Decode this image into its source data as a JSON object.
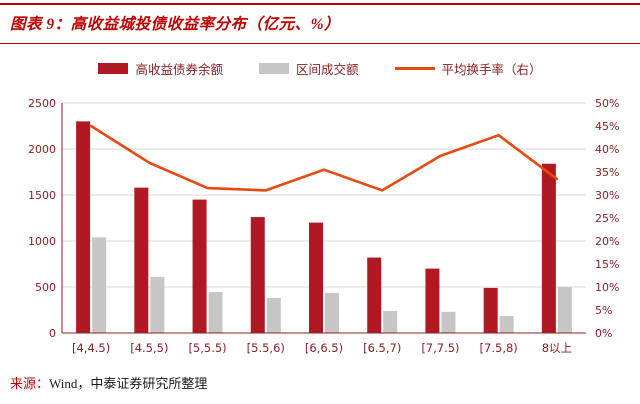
{
  "header": {
    "title": "图表 9：高收益城投债收益率分布（亿元、%）"
  },
  "footer": {
    "source_label": "来源：",
    "source_text": "Wind，中泰证券研究所整理"
  },
  "colors": {
    "title_red": "#c00000",
    "bar_primary": "#b01823",
    "bar_secondary": "#c6c6c6",
    "line_accent": "#e8490f",
    "axis_text": "#8b2023",
    "gridline": "#d9d9d9"
  },
  "chart_data": {
    "type": "bar",
    "title": "高收益城投债收益率分布（亿元、%）",
    "legend_position": "top",
    "grid": true,
    "categories": [
      "[4,4.5)",
      "[4.5,5)",
      "[5,5.5)",
      "[5.5,6)",
      "[6,6.5)",
      "[6.5,7)",
      "[7,7.5)",
      "[7.5,8)",
      "8以上"
    ],
    "series": [
      {
        "name": "高收益债券余额",
        "type": "bar",
        "axis": "left",
        "color": "#b01823",
        "values": [
          2300,
          1580,
          1450,
          1260,
          1200,
          820,
          700,
          490,
          1840
        ]
      },
      {
        "name": "区间成交额",
        "type": "bar",
        "axis": "left",
        "color": "#c6c6c6",
        "values": [
          1040,
          610,
          445,
          380,
          435,
          240,
          230,
          185,
          500
        ]
      },
      {
        "name": "平均换手率（右）",
        "type": "line",
        "axis": "right",
        "color": "#e8490f",
        "values": [
          45,
          37,
          31.5,
          31,
          35.5,
          31,
          38.5,
          43,
          33.5
        ]
      }
    ],
    "left_axis": {
      "min": 0,
      "max": 2500,
      "step": 500,
      "ticks": [
        "0",
        "500",
        "1000",
        "1500",
        "2000",
        "2500"
      ]
    },
    "right_axis": {
      "min": 0,
      "max": 50,
      "step": 5,
      "ticks": [
        "0%",
        "5%",
        "10%",
        "15%",
        "20%",
        "25%",
        "30%",
        "35%",
        "40%",
        "45%",
        "50%"
      ]
    }
  }
}
